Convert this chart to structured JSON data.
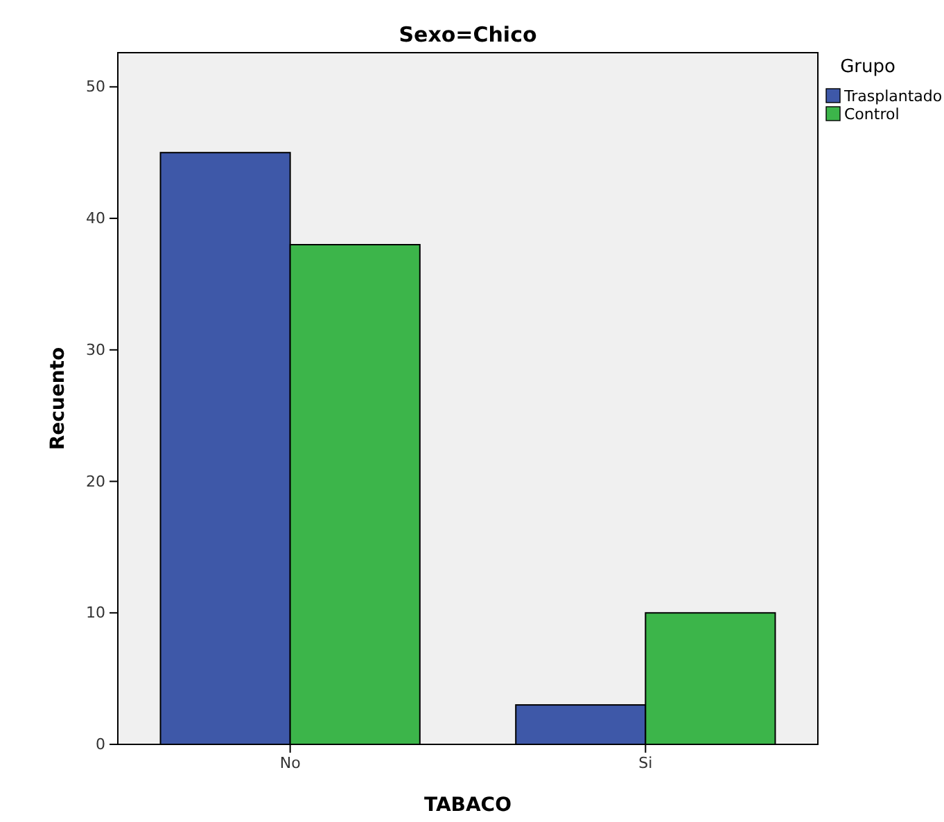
{
  "chart_data": {
    "type": "bar",
    "title": "Sexo=Chico",
    "xlabel": "TABACO",
    "ylabel": "Recuento",
    "legend_title": "Grupo",
    "categories": [
      "No",
      "Si"
    ],
    "series": [
      {
        "name": "Trasplantado",
        "color": "#3e58a8",
        "values": [
          45,
          3
        ]
      },
      {
        "name": "Control",
        "color": "#3cb54a",
        "values": [
          38,
          10
        ]
      }
    ],
    "ylim": [
      0,
      52.6
    ],
    "yticks": [
      0,
      10,
      20,
      30,
      40,
      50
    ],
    "grid": false,
    "legend": "top right"
  }
}
